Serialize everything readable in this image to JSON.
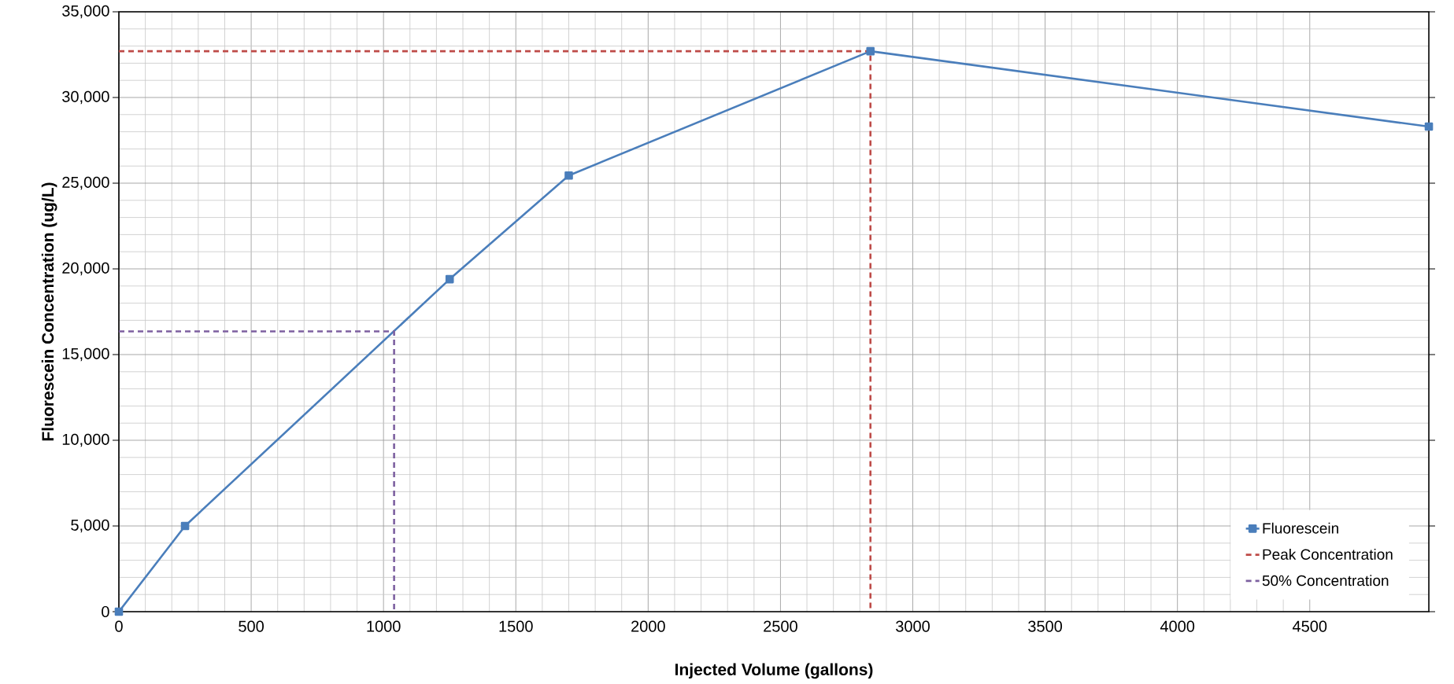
{
  "chart_data": {
    "type": "line",
    "xlabel": "Injected Volume (gallons)",
    "ylabel": "Fluorescein Concentration (ug/L)",
    "xlim": [
      0,
      4950
    ],
    "ylim": [
      0,
      35000
    ],
    "xticks": [
      0,
      500,
      1000,
      1500,
      2000,
      2500,
      3000,
      3500,
      4000,
      4500
    ],
    "yticks": [
      {
        "value": 0,
        "label": "0"
      },
      {
        "value": 5000,
        "label": "5,000"
      },
      {
        "value": 10000,
        "label": "10,000"
      },
      {
        "value": 15000,
        "label": "15,000"
      },
      {
        "value": 20000,
        "label": "20,000"
      },
      {
        "value": 25000,
        "label": "25,000"
      },
      {
        "value": 30000,
        "label": "30,000"
      },
      {
        "value": 35000,
        "label": "35,000"
      }
    ],
    "grid": true,
    "legend": "bottom right",
    "series": [
      {
        "name": "Fluorescein",
        "color": "#4a7ebb",
        "marker": "square",
        "line_style": "solid",
        "x": [
          0,
          250,
          1250,
          1700,
          2840,
          4950
        ],
        "values": [
          0,
          5000,
          19400,
          25450,
          32700,
          28300
        ]
      },
      {
        "name": "Peak Concentration",
        "color": "#be4b48",
        "marker": "none",
        "line_style": "dashed",
        "x": [
          0,
          2840,
          2840
        ],
        "values": [
          32700,
          32700,
          0
        ]
      },
      {
        "name": "50% Concentration",
        "color": "#7d60a0",
        "marker": "none",
        "line_style": "dashed",
        "x": [
          0,
          1040,
          1040
        ],
        "values": [
          16350,
          16350,
          0
        ]
      }
    ]
  }
}
